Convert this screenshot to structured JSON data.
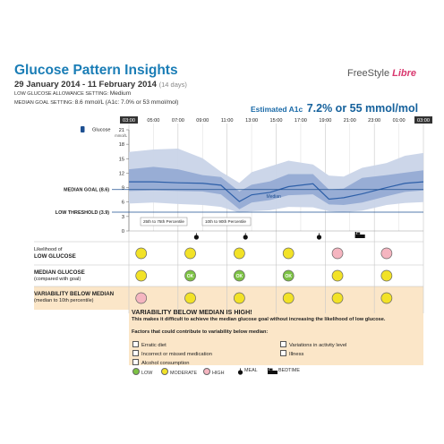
{
  "report": {
    "title": "Glucose Pattern Insights",
    "date_range": "29 January 2014 - 11 February 2014",
    "days": "(14 days)",
    "low_setting_label": "LOW GLUCOSE ALLOWANCE SETTING:",
    "low_setting_value": "Medium",
    "median_setting_label": "MEDIAN GOAL SETTING:",
    "median_setting_value": "8.6 mmol/L (A1c: 7.0% or 53 mmol/mol)",
    "brand_part1": "FreeStyle",
    "brand_part2": "Libre",
    "a1c_label": "Estimated A1c",
    "a1c_value": "7.2% or 55 mmol/mol"
  },
  "chart": {
    "time_labels": [
      "03:00",
      "05:00",
      "07:00",
      "09:00",
      "11:00",
      "13:00",
      "15:00",
      "17:00",
      "19:00",
      "21:00",
      "23:00",
      "01:00",
      "03:00"
    ],
    "y_ticks": [
      "21",
      "18",
      "15",
      "12",
      "9",
      "6",
      "3",
      "0"
    ],
    "y_unit": "mmol/L",
    "glucose_label": "Glucose",
    "median_goal_label": "MEDIAN GOAL (8.6)",
    "low_threshold_label": "LOW THRESHOLD (3.9)",
    "median_line_label": "Median",
    "legend_25_75": "25th to 75th Percentile",
    "legend_10_90": "10th to 90th Percentile",
    "median_goal": 8.6,
    "low_threshold": 3.9,
    "median_curve": [
      10.2,
      10.2,
      10.0,
      9.9,
      9.5,
      6.1,
      7.5,
      8.0,
      9.2,
      9.8,
      6.6,
      6.9,
      7.7,
      9.0,
      9.9,
      10.2
    ],
    "p25": [
      8.3,
      8.4,
      8.3,
      8.2,
      7.6,
      4.5,
      5.9,
      6.4,
      7.4,
      7.6,
      5.5,
      5.4,
      5.9,
      7.2,
      8.1,
      8.4
    ],
    "p75": [
      12.8,
      13.3,
      12.8,
      11.6,
      11.2,
      8.2,
      9.6,
      10.3,
      11.8,
      11.8,
      8.6,
      8.8,
      11.0,
      11.6,
      12.1,
      12.6
    ],
    "p10": [
      5.7,
      5.9,
      5.6,
      5.4,
      5.0,
      3.8,
      4.1,
      4.3,
      5.0,
      4.9,
      4.1,
      3.9,
      4.2,
      5.4,
      5.8,
      6.0
    ],
    "p90": [
      16.4,
      16.9,
      17.1,
      15.1,
      12.3,
      10.0,
      12.2,
      13.4,
      14.6,
      13.8,
      11.5,
      11.3,
      13.1,
      14.1,
      15.6,
      16.2
    ],
    "curve_hours": [
      3,
      5,
      7,
      9,
      10.5,
      12,
      13,
      14.5,
      16,
      18,
      19.3,
      20.5,
      22,
      24,
      25.5,
      27
    ],
    "events": [
      {
        "type": "meal",
        "hour": 8.5
      },
      {
        "type": "meal",
        "hour": 12.5
      },
      {
        "type": "meal",
        "hour": 18.5
      },
      {
        "type": "bedtime",
        "hour": 21.8
      }
    ]
  },
  "matrix": {
    "rows": [
      {
        "title": "LOW GLUCOSE",
        "sub_above": "Likelihood of",
        "sub_below": ""
      },
      {
        "title": "MEDIAN GLUCOSE",
        "sub_above": "",
        "sub_below": "(compared with goal)"
      },
      {
        "title": "VARIABILITY BELOW MEDIAN",
        "sub_above": "",
        "sub_below": "(median to 10th percentile)"
      }
    ],
    "cells": [
      [
        "moderate",
        "moderate",
        "moderate",
        "moderate",
        "high",
        "high"
      ],
      [
        "moderate",
        "low",
        "low",
        "low",
        "moderate",
        "moderate"
      ],
      [
        "high",
        "moderate",
        "moderate",
        "moderate",
        "moderate",
        "moderate"
      ]
    ],
    "ok_label": "OK"
  },
  "warning": {
    "title": "VARIABILITY BELOW MEDIAN IS HIGH!",
    "subtitle": "This makes it difficult to achieve the median glucose goal without increasing the likelihood of low glucose.",
    "factors_header": "Factors that could contribute to variability below median:",
    "factors": [
      "Erratic diet",
      "Incorrect or missed medication",
      "Alcohol consumption",
      "Variations in activity level",
      "Illness"
    ]
  },
  "legend": {
    "low": "LOW",
    "moderate": "MODERATE",
    "high": "HIGH",
    "meal": "MEAL",
    "bedtime": "BEDTIME"
  },
  "colors": {
    "title_blue": "#1a7db6",
    "band_outer": "#c9d4e8",
    "band_inner": "#8ea6d1",
    "median_line": "#2d5fa8",
    "low_green": "#7cc243",
    "moderate_yellow": "#f2e227",
    "high_pink": "#f5b5c0",
    "highlight_bg": "#fbe6c8"
  }
}
